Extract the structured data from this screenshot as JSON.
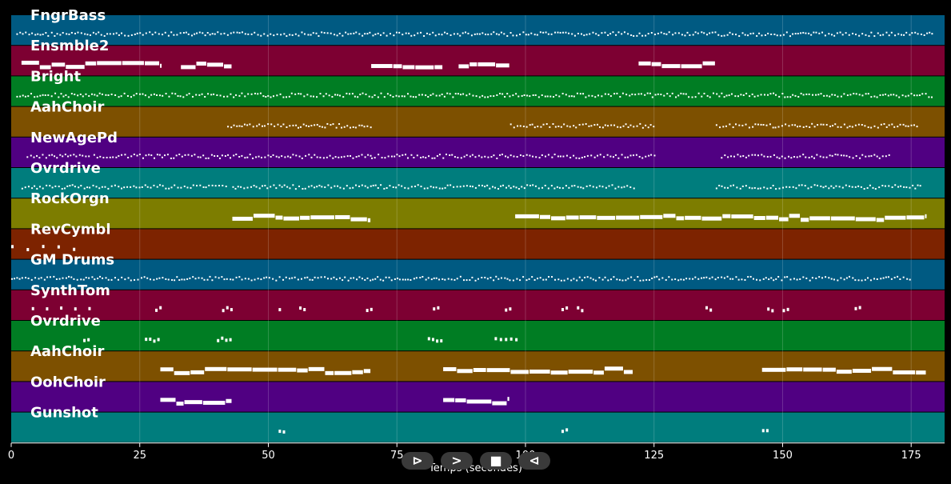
{
  "xlabel": "Temps (secondes)",
  "xticks": [
    0,
    25,
    50,
    75,
    100,
    125,
    150,
    175
  ],
  "xlim": [
    0,
    181.5
  ],
  "controls": {
    "play_icon": "⊳",
    "forward_icon": ">",
    "stop_icon": "■",
    "back_icon": "⊲"
  },
  "tracks": [
    {
      "name": "FngrBass",
      "color": "#005a82",
      "pattern": "dense",
      "segments": [
        [
          1,
          179
        ]
      ]
    },
    {
      "name": "Ensmble2",
      "color": "#7d0032",
      "pattern": "sustained",
      "segments": [
        [
          2,
          29
        ],
        [
          33,
          43
        ],
        [
          70,
          84
        ],
        [
          87,
          97
        ],
        [
          122,
          137
        ]
      ]
    },
    {
      "name": "Bright",
      "color": "#007d23",
      "pattern": "dense",
      "segments": [
        [
          1,
          179
        ]
      ]
    },
    {
      "name": "AahChoir",
      "color": "#7d5000",
      "pattern": "dense",
      "segments": [
        [
          42,
          70
        ],
        [
          97,
          125
        ],
        [
          137,
          176
        ]
      ]
    },
    {
      "name": "NewAgePd",
      "color": "#500082",
      "pattern": "dense",
      "segments": [
        [
          3,
          15
        ],
        [
          16,
          42
        ],
        [
          42,
          70
        ],
        [
          70,
          97
        ],
        [
          97,
          125
        ],
        [
          138,
          171
        ]
      ]
    },
    {
      "name": "Ovrdrive",
      "color": "#007d7d",
      "pattern": "dense",
      "segments": [
        [
          2,
          42
        ],
        [
          43,
          97
        ],
        [
          97,
          121
        ],
        [
          137,
          177
        ]
      ]
    },
    {
      "name": "RockOrgn",
      "color": "#7d7d00",
      "pattern": "sustained",
      "segments": [
        [
          43,
          70
        ],
        [
          98,
          178
        ]
      ]
    },
    {
      "name": "RevCymbl",
      "color": "#7d2300",
      "pattern": "sparse",
      "segments": [
        [
          0,
          12
        ]
      ]
    },
    {
      "name": "GM Drums",
      "color": "#005a82",
      "pattern": "dense",
      "segments": [
        [
          0,
          175
        ]
      ]
    },
    {
      "name": "SynthTom",
      "color": "#7d0032",
      "pattern": "sparse",
      "segments": [
        [
          4,
          15
        ],
        [
          28,
          29
        ],
        [
          41,
          43
        ],
        [
          52,
          52.5
        ],
        [
          56,
          57
        ],
        [
          69,
          70
        ],
        [
          82,
          83
        ],
        [
          96,
          97
        ],
        [
          107,
          108
        ],
        [
          110,
          111
        ],
        [
          135,
          136
        ],
        [
          147,
          148
        ],
        [
          150,
          151
        ],
        [
          164,
          165
        ]
      ]
    },
    {
      "name": "Ovrdrive",
      "color": "#007d23",
      "pattern": "sparse",
      "segments": [
        [
          14,
          15
        ],
        [
          26,
          29
        ],
        [
          40,
          43
        ],
        [
          81,
          84
        ],
        [
          94,
          98
        ]
      ]
    },
    {
      "name": "AahChoir",
      "color": "#7d5000",
      "pattern": "sustained",
      "segments": [
        [
          29,
          70
        ],
        [
          84,
          121
        ],
        [
          146,
          178
        ]
      ]
    },
    {
      "name": "OohChoir",
      "color": "#500082",
      "pattern": "sustained",
      "segments": [
        [
          29,
          43
        ],
        [
          84,
          97
        ]
      ]
    },
    {
      "name": "Gunshot",
      "color": "#007d7d",
      "pattern": "sparse",
      "segments": [
        [
          52,
          53
        ],
        [
          107,
          108
        ],
        [
          146,
          147
        ]
      ]
    }
  ]
}
